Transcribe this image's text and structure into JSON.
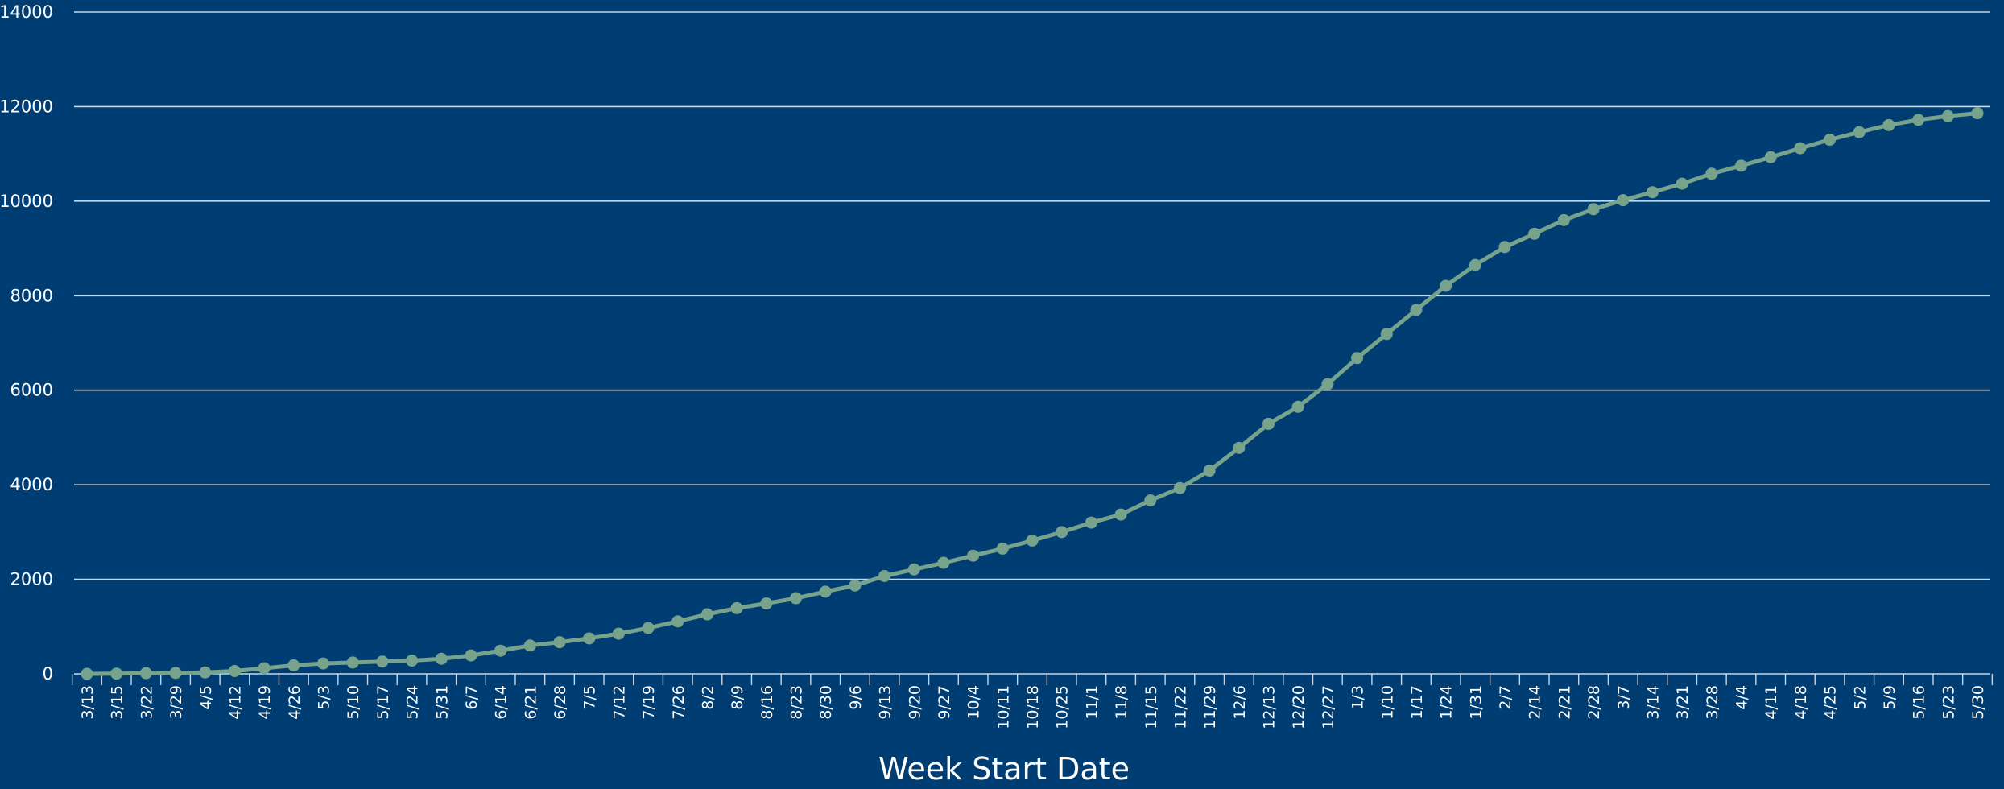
{
  "colors": {
    "background": "#003d73",
    "gridline": "#c9d6e6",
    "series": "#77a38c",
    "text": "#ffffff"
  },
  "chart_data": {
    "type": "line",
    "title": "",
    "xlabel": "Week Start Date",
    "ylabel": "",
    "ylim": [
      0,
      14000
    ],
    "yticks": [
      0,
      2000,
      4000,
      6000,
      8000,
      10000,
      12000,
      14000
    ],
    "grid": true,
    "legend": "none",
    "categories": [
      "3/13",
      "3/15",
      "3/22",
      "3/29",
      "4/5",
      "4/12",
      "4/19",
      "4/26",
      "5/3",
      "5/10",
      "5/17",
      "5/24",
      "5/31",
      "6/7",
      "6/14",
      "6/21",
      "6/28",
      "7/5",
      "7/12",
      "7/19",
      "7/26",
      "8/2",
      "8/9",
      "8/16",
      "8/23",
      "8/30",
      "9/6",
      "9/13",
      "9/20",
      "9/27",
      "10/4",
      "10/11",
      "10/18",
      "10/25",
      "11/1",
      "11/8",
      "11/15",
      "11/22",
      "11/29",
      "12/6",
      "12/13",
      "12/20",
      "12/27",
      "1/3",
      "1/10",
      "1/17",
      "1/24",
      "1/31",
      "2/7",
      "2/14",
      "2/21",
      "2/28",
      "3/7",
      "3/14",
      "3/21",
      "3/28",
      "4/4",
      "4/11",
      "4/18",
      "4/25",
      "5/2",
      "5/9",
      "5/16",
      "5/23",
      "5/30"
    ],
    "series": [
      {
        "values": [
          0,
          5,
          15,
          20,
          30,
          60,
          120,
          180,
          220,
          240,
          260,
          280,
          320,
          390,
          490,
          600,
          670,
          750,
          850,
          970,
          1110,
          1260,
          1390,
          1490,
          1600,
          1740,
          1870,
          2070,
          2210,
          2350,
          2500,
          2650,
          2820,
          3000,
          3200,
          3370,
          3670,
          3930,
          4300,
          4780,
          5290,
          5650,
          6130,
          6680,
          7190,
          7700,
          8210,
          8650,
          9030,
          9310,
          9600,
          9830,
          10020,
          10190,
          10370,
          10580,
          10750,
          10930,
          11120,
          11300,
          11460,
          11610,
          11720,
          11800,
          11860
        ]
      }
    ]
  }
}
